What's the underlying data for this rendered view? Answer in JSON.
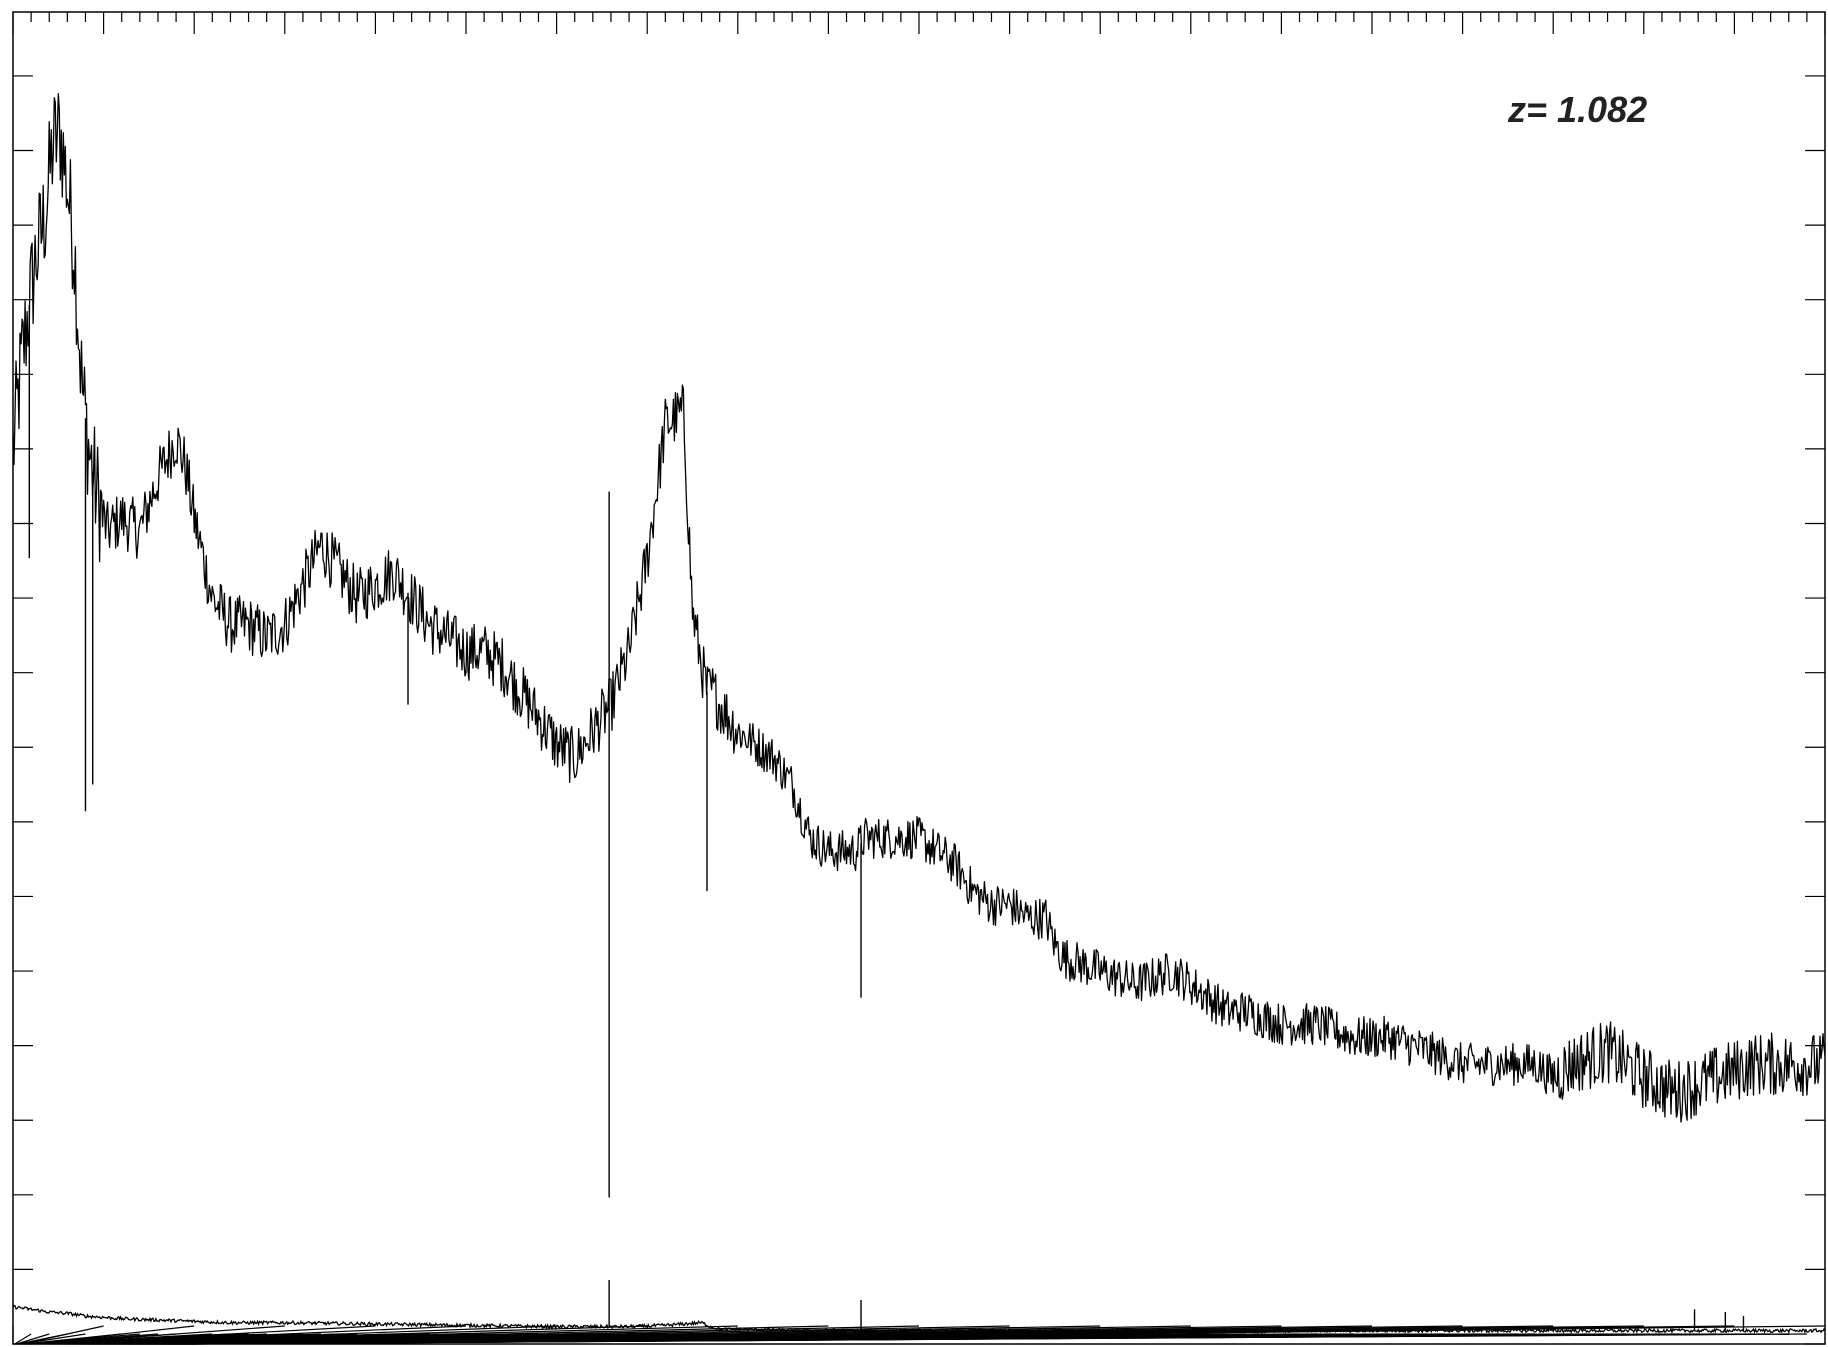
{
  "chart_data": {
    "type": "line",
    "title": "",
    "xlabel": "",
    "ylabel": "",
    "annotation": "z=  1.082",
    "xlim": [
      0,
      100
    ],
    "ylim": [
      0,
      100
    ],
    "x_tick_labels": [],
    "y_tick_labels": [],
    "grid": false,
    "legend": "none",
    "series": [
      {
        "role": "flux",
        "x": [
          0,
          0.5,
          1.2,
          1.8,
          2.2,
          2.6,
          3,
          3.4,
          3.8,
          4.2,
          4.6,
          5.2,
          6,
          7,
          8,
          9,
          9.5,
          10,
          10.5,
          11,
          12,
          13,
          14,
          15,
          16,
          17,
          18,
          19,
          20,
          21,
          22,
          23,
          24,
          25,
          26,
          27,
          28,
          29,
          30,
          31,
          32,
          33,
          34,
          35,
          36,
          37,
          37.5,
          38,
          38.3,
          38.6,
          39,
          39.5,
          40,
          41,
          42,
          43,
          44,
          45,
          46,
          46.5,
          47,
          48,
          50,
          52,
          53,
          54,
          55,
          56,
          57,
          57.5,
          58,
          60,
          62,
          64,
          66,
          67,
          68,
          70,
          72,
          74,
          76,
          78,
          80,
          82,
          84,
          85,
          86,
          88,
          90,
          91.5,
          92,
          94,
          96,
          98,
          100
        ],
        "y": [
          67,
          74,
          81,
          85,
          90,
          91,
          87,
          82,
          72,
          67,
          64,
          61,
          62,
          61,
          65,
          68,
          66,
          62,
          59,
          56,
          54,
          54,
          53,
          54,
          57,
          60,
          58,
          56,
          57,
          58,
          56,
          54,
          53,
          52,
          52,
          51,
          49,
          47,
          45,
          44,
          46,
          48,
          52,
          59,
          69,
          70,
          55,
          51,
          49,
          49,
          48,
          47,
          46,
          45,
          44,
          42,
          38,
          37,
          37,
          37,
          38,
          38,
          38,
          36,
          34,
          33,
          33,
          32,
          32,
          30,
          29,
          28,
          27,
          28,
          26,
          25,
          25,
          24,
          24,
          23,
          23,
          22,
          21,
          21,
          21,
          20,
          21,
          22,
          20,
          19,
          19,
          20,
          21,
          21,
          21
        ],
        "dips": [
          {
            "x": 0.9,
            "y": 59
          },
          {
            "x": 4.0,
            "y": 40
          },
          {
            "x": 4.4,
            "y": 42
          },
          {
            "x": 21.8,
            "y": 48
          },
          {
            "x": 32.9,
            "y": 11
          },
          {
            "x": 38.3,
            "y": 34
          },
          {
            "x": 46.8,
            "y": 26
          },
          {
            "x": 91.8,
            "y": 17
          }
        ],
        "spikes": [
          {
            "x": 32.9,
            "y": 64
          }
        ]
      },
      {
        "role": "error",
        "x": [
          0,
          1,
          2,
          3,
          4,
          6,
          8,
          10,
          12,
          15,
          20,
          25,
          30,
          32,
          33,
          34,
          36,
          37,
          38,
          38.5,
          39,
          40,
          45,
          46,
          47,
          50,
          60,
          70,
          80,
          90,
          100
        ],
        "y": [
          2.8,
          2.6,
          2.4,
          2.3,
          2.1,
          1.9,
          1.8,
          1.7,
          1.6,
          1.6,
          1.5,
          1.4,
          1.3,
          1.3,
          1.3,
          1.3,
          1.4,
          1.5,
          1.6,
          1.3,
          1.1,
          1.1,
          1.0,
          1.0,
          1.0,
          1.0,
          1.0,
          1.0,
          1.0,
          1.0,
          1.0
        ],
        "spikes": [
          {
            "x": 32.9,
            "y": 4.8
          },
          {
            "x": 46.8,
            "y": 3.3
          },
          {
            "x": 92.8,
            "y": 2.6
          },
          {
            "x": 94.5,
            "y": 2.4
          },
          {
            "x": 95.5,
            "y": 2.1
          }
        ]
      }
    ]
  }
}
